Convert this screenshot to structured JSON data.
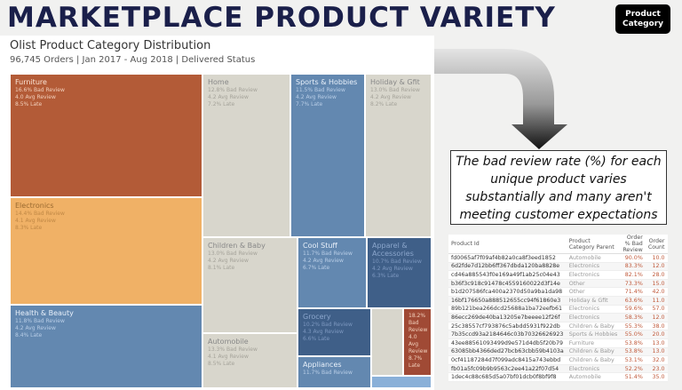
{
  "header": {
    "title": "MARKETPLACE PRODUCT VARIETY",
    "filter_button": "Product Category"
  },
  "treemap": {
    "title": "Olist Product Category Distribution",
    "subtitle": "96,745  Orders | Jan 2017 - Aug 2018 | Delivered Status",
    "tiles": [
      {
        "name": "Furniture",
        "bad": "16.6%  Bad Review",
        "avg": "4.0 Avg Review",
        "late": "8.5% Late"
      },
      {
        "name": "Electronics",
        "bad": "14.4%  Bad Review",
        "avg": "4.1 Avg Review",
        "late": "8.3% Late"
      },
      {
        "name": "Health & Beauty",
        "bad": "11.8%  Bad Review",
        "avg": "4.2 Avg Review",
        "late": "8.4% Late"
      },
      {
        "name": "Home",
        "bad": "12.8%  Bad Review",
        "avg": "4.2 Avg Review",
        "late": "7.2% Late"
      },
      {
        "name": "Sports & Hobbies",
        "bad": "11.5%  Bad Review",
        "avg": "4.2 Avg Review",
        "late": "7.7% Late"
      },
      {
        "name": "Holiday & Gfit",
        "bad": "13.0%  Bad Review",
        "avg": "4.2 Avg Review",
        "late": "8.2% Late"
      },
      {
        "name": "Children & Baby",
        "bad": "13.0%  Bad Review",
        "avg": "4.2 Avg Review",
        "late": "8.1% Late"
      },
      {
        "name": "Automobile",
        "bad": "13.3%  Bad Review",
        "avg": "4.1 Avg Review",
        "late": "8.5% Late"
      },
      {
        "name": "Cool Stuff",
        "bad": "11.7%  Bad Review",
        "avg": "4.2 Avg Review",
        "late": "6.7% Late"
      },
      {
        "name": "Apparel & Accessories",
        "bad": "10.7%  Bad Review",
        "avg": "4.2 Avg Review",
        "late": "6.3% Late"
      },
      {
        "name": "Grocery",
        "bad": "10.2%  Bad Review",
        "avg": "4.3 Avg Review",
        "late": "6.6% Late"
      },
      {
        "name": "Appliances",
        "bad": "11.7%  Bad Review"
      },
      {
        "bad": "18.2% Bad Review",
        "avg": "4.0 Avg Review",
        "late": "8.7% Late"
      }
    ],
    "colors": {
      "furniture": "#b35b37",
      "electronics": "#f0b166",
      "blue": "#6388b0",
      "grey": "#d8d6cc",
      "dark_blue": "#3f5f88",
      "red": "#a04a35",
      "light_blue": "#8ab0d8"
    }
  },
  "callout": "The bad review rate (%) for each unique product varies substantially and many aren't meeting customer expectations",
  "table": {
    "headers": [
      "Product Id",
      "Product Category Parent",
      "Order % Bad Review",
      "Order Count"
    ],
    "rows": [
      [
        "fd0065af7f09af4b82a0ca8f3eed1852",
        "Automobile",
        "90.0%",
        "10.0"
      ],
      [
        "6d2fde7d12bb6ff367dbda120ba8828e",
        "Electronics",
        "83.3%",
        "12.0"
      ],
      [
        "cd46a885543f0e169a49f1ab25c04e43",
        "Electronics",
        "82.1%",
        "28.0"
      ],
      [
        "b36f3c918c91478c4559160022d3f14e",
        "Other",
        "73.3%",
        "15.0"
      ],
      [
        "b1d207586fca400a2370d50a9ba1da98",
        "Other",
        "71.4%",
        "42.0"
      ],
      [
        "16bf176650a888512655cc94f61860e3",
        "Holiday & Gfit",
        "63.6%",
        "11.0"
      ],
      [
        "89b121bea266dcd25688a1ba72eefb61",
        "Electronics",
        "59.6%",
        "57.0"
      ],
      [
        "86ecc269de40ba13205e7beeee12f26f",
        "Electronics",
        "58.3%",
        "12.0"
      ],
      [
        "25c38557cf793876c5abdd5931f922db",
        "Children & Baby",
        "55.3%",
        "38.0"
      ],
      [
        "7b35ccd93a2184646c03b70326626923",
        "Sports & Hobbies",
        "55.0%",
        "20.0"
      ],
      [
        "43ee88561093499d9e571d4db5f20b79",
        "Furniture",
        "53.8%",
        "13.0"
      ],
      [
        "63085bb4366ded27bcb63cbb59b4103a",
        "Children & Baby",
        "53.8%",
        "13.0"
      ],
      [
        "0cf41187284d7f099adc8415a743ebbd",
        "Children & Baby",
        "53.1%",
        "32.0"
      ],
      [
        "fb01a5fc09b9b9563c2ee41a22f07d54",
        "Electronics",
        "52.2%",
        "23.0"
      ],
      [
        "1dec4c88c685d5a07bf01dcb0f8bf9f8",
        "Automobile",
        "51.4%",
        "35.0"
      ]
    ]
  }
}
